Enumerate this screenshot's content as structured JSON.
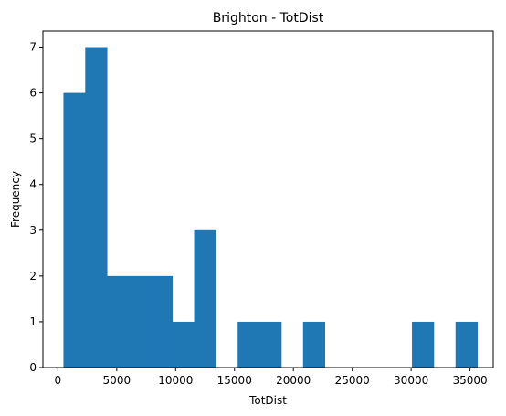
{
  "chart_data": {
    "type": "bar",
    "title": "Brighton - TotDist",
    "xlabel": "TotDist",
    "ylabel": "Frequency",
    "xlim": [
      -1270,
      36970
    ],
    "ylim": [
      0,
      7.35
    ],
    "bin_edges": [
      470,
      2320,
      4170,
      6020,
      7870,
      9720,
      11570,
      13420,
      15270,
      17120,
      18970,
      20820,
      22670,
      24520,
      26370,
      28220,
      30070,
      31920,
      33770,
      35620
    ],
    "values": [
      6,
      7,
      2,
      2,
      2,
      1,
      3,
      0,
      1,
      1,
      0,
      1,
      0,
      0,
      0,
      0,
      1,
      0,
      1
    ],
    "xticks": [
      0,
      5000,
      10000,
      15000,
      20000,
      25000,
      30000,
      35000
    ],
    "yticks": [
      0,
      1,
      2,
      3,
      4,
      5,
      6,
      7
    ],
    "bar_color": "#1f77b4",
    "grid": false,
    "legend": "none"
  }
}
